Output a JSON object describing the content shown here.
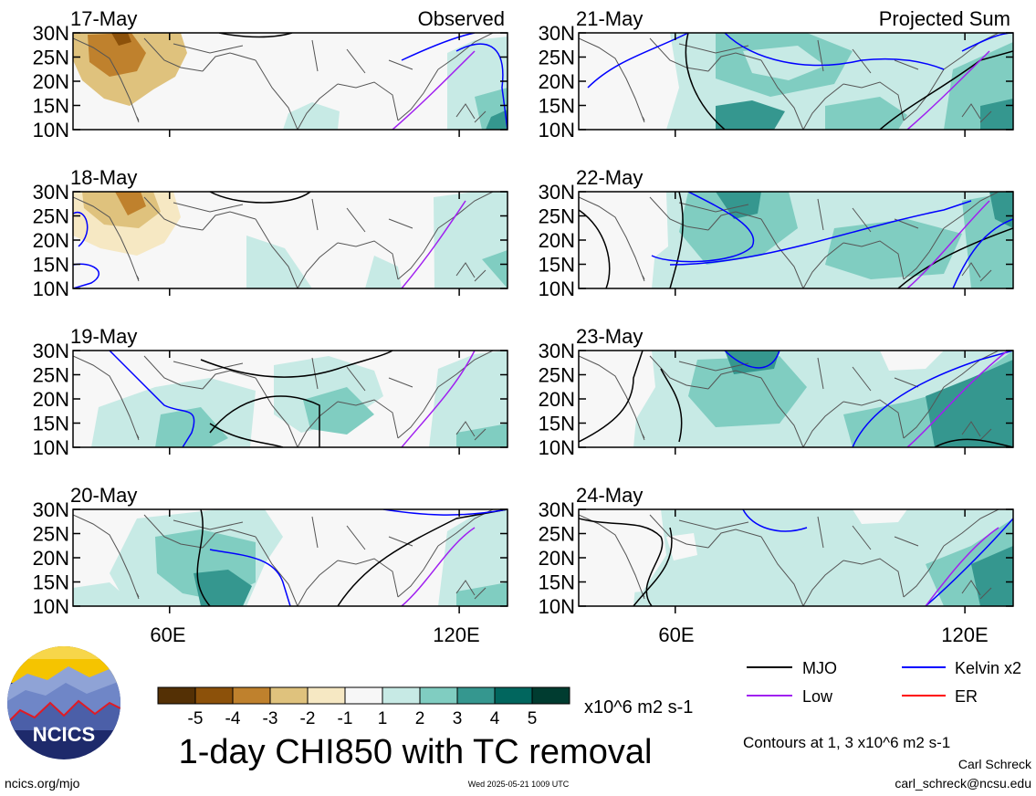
{
  "panels": [
    {
      "date": "17-May",
      "label": "Observed",
      "col": 0,
      "row": 0
    },
    {
      "date": "18-May",
      "label": "",
      "col": 0,
      "row": 1
    },
    {
      "date": "19-May",
      "label": "",
      "col": 0,
      "row": 2
    },
    {
      "date": "20-May",
      "label": "",
      "col": 0,
      "row": 3
    },
    {
      "date": "21-May",
      "label": "Projected Sum",
      "col": 1,
      "row": 0
    },
    {
      "date": "22-May",
      "label": "",
      "col": 1,
      "row": 1
    },
    {
      "date": "23-May",
      "label": "",
      "col": 1,
      "row": 2
    },
    {
      "date": "24-May",
      "label": "",
      "col": 1,
      "row": 3
    }
  ],
  "axes": {
    "lat_ticks": [
      "30N",
      "25N",
      "20N",
      "15N",
      "10N"
    ],
    "lon_ticks": [
      "60E",
      "120E"
    ],
    "lat_range": [
      10,
      30
    ],
    "lon_range": [
      40,
      130
    ]
  },
  "colorbar": {
    "tick_labels": [
      "-5",
      "-4",
      "-3",
      "-2",
      "-1",
      "1",
      "2",
      "3",
      "4",
      "5"
    ],
    "colors": [
      "#543005",
      "#8c510a",
      "#bf812d",
      "#dfc27d",
      "#f6e8c3",
      "#f7f7f7",
      "#c7eae5",
      "#80cdc1",
      "#35978f",
      "#01665e",
      "#003c30"
    ],
    "units": "x10^6 m2 s-1"
  },
  "title": "1-day CHI850 with TC removal",
  "legend": [
    {
      "label": "MJO",
      "color": "#000000"
    },
    {
      "label": "Kelvin x2",
      "color": "#0000ff"
    },
    {
      "label": "Low",
      "color": "#a020f0"
    },
    {
      "label": "ER",
      "color": "#ff0000"
    }
  ],
  "contours_note": "Contours at 1, 3 x10^6 m2 s-1",
  "author": "Carl Schreck",
  "email": "carl_schreck@ncsu.edu",
  "website": "ncics.org/mjo",
  "timestamp": "Wed 2025-05-21 1009 UTC",
  "logo_text": "NCICS"
}
